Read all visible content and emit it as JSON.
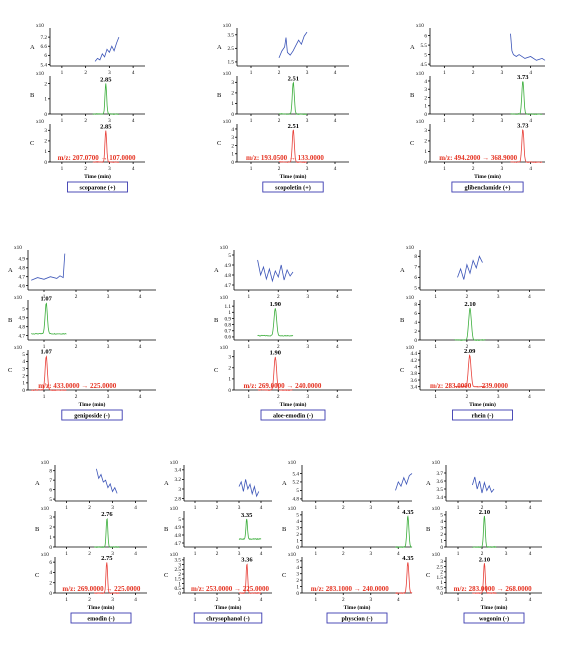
{
  "colors": {
    "A": "#3c55b8",
    "B": "#3cae3c",
    "C": "#e8413a",
    "mrm_text": "#e53322",
    "name_box": "#3a3ab0"
  },
  "chart_data": [
    {
      "type": "line",
      "compound": "scoparone (+)",
      "xlabel": "Time (min)",
      "xlim": [
        0.5,
        4.5
      ],
      "xticks": [
        1,
        2,
        3,
        4
      ],
      "mrm": "m/z: 207.0700 → 107.0000",
      "A": {
        "exp": "x10",
        "ticks": [
          5.4,
          6,
          6.6,
          7.2
        ],
        "ylim": [
          5.3,
          7.8
        ],
        "x": [
          2.4,
          2.5,
          2.6,
          2.7,
          2.8,
          2.9,
          3.0,
          3.1,
          3.2,
          3.3,
          3.4
        ],
        "y": [
          5.6,
          5.8,
          5.7,
          6.1,
          5.9,
          6.4,
          6.2,
          6.6,
          6.3,
          6.8,
          7.2
        ]
      },
      "B": {
        "exp": "x10",
        "ticks": [
          0,
          1,
          2
        ],
        "ylim": [
          0,
          2.5
        ],
        "peak_label": "2.85",
        "peak_rt": 2.85,
        "peak_h": 2.0,
        "x_start": 2.3,
        "x_end": 3.4,
        "width": 0.05
      },
      "C": {
        "exp": "x10",
        "ticks": [
          0,
          1,
          2,
          3
        ],
        "ylim": [
          0,
          3.6
        ],
        "peak_label": "2.85",
        "peak_rt": 2.85,
        "peak_h": 3.0,
        "x_start": 2.3,
        "x_end": 3.4,
        "width": 0.05
      }
    },
    {
      "type": "line",
      "compound": "scopoletin (+)",
      "xlabel": "Time (min)",
      "xlim": [
        0.5,
        4.5
      ],
      "xticks": [
        1,
        2,
        3,
        4
      ],
      "mrm": "m/z: 193.0500 → 133.0000",
      "A": {
        "exp": "x10",
        "ticks": [
          1.5,
          2.5,
          3.5
        ],
        "ylim": [
          1.2,
          4.0
        ],
        "x": [
          2.0,
          2.1,
          2.2,
          2.25,
          2.3,
          2.4,
          2.5,
          2.6,
          2.7,
          2.8,
          2.9,
          3.0
        ],
        "y": [
          1.8,
          2.3,
          2.6,
          3.3,
          2.2,
          2.0,
          2.3,
          2.7,
          3.1,
          2.8,
          3.4,
          3.7
        ]
      },
      "B": {
        "exp": "x10",
        "ticks": [
          0,
          1,
          2,
          3
        ],
        "ylim": [
          0,
          3.6
        ],
        "peak_label": "2.51",
        "peak_rt": 2.51,
        "peak_h": 3.0,
        "x_start": 2.0,
        "x_end": 3.0,
        "width": 0.05
      },
      "C": {
        "exp": "x10",
        "ticks": [
          0,
          1,
          2,
          3,
          4
        ],
        "ylim": [
          0,
          4.6
        ],
        "peak_label": "2.51",
        "peak_rt": 2.51,
        "peak_h": 3.9,
        "x_start": 2.0,
        "x_end": 3.0,
        "width": 0.05
      }
    },
    {
      "type": "line",
      "compound": "glibenclamide (+)",
      "xlabel": "Time (min)",
      "xlim": [
        0.5,
        4.5
      ],
      "xticks": [
        1,
        2,
        3,
        4
      ],
      "mrm": "m/z: 494.2000 → 368.9000",
      "A": {
        "exp": "x10",
        "ticks": [
          4.5,
          5,
          5.5,
          6
        ],
        "ylim": [
          4.4,
          6.4
        ],
        "x": [
          3.3,
          3.35,
          3.4,
          3.5,
          3.6,
          3.8,
          4.0,
          4.2,
          4.4,
          4.5
        ],
        "y": [
          6.1,
          5.2,
          5.0,
          4.9,
          5.0,
          4.8,
          4.9,
          4.7,
          4.8,
          4.7
        ]
      },
      "B": {
        "exp": "x10",
        "ticks": [
          0,
          1,
          2,
          3,
          4
        ],
        "ylim": [
          0,
          4.6
        ],
        "peak_label": "3.73",
        "peak_rt": 3.73,
        "peak_h": 4.0,
        "x_start": 3.3,
        "x_end": 4.4,
        "width": 0.05
      },
      "C": {
        "exp": "x10",
        "ticks": [
          0,
          1,
          2,
          3
        ],
        "ylim": [
          0,
          3.6
        ],
        "peak_label": "3.73",
        "peak_rt": 3.73,
        "peak_h": 3.1,
        "x_start": 3.3,
        "x_end": 4.4,
        "width": 0.05
      }
    },
    {
      "type": "line",
      "compound": "geniposide (-)",
      "xlabel": "Time (min)",
      "xlim": [
        0.5,
        4.5
      ],
      "xticks": [
        1,
        2,
        3,
        4
      ],
      "mrm": "m/z: 433.0000 → 225.0000",
      "A": {
        "exp": "x10",
        "ticks": [
          4.6,
          4.7,
          4.8,
          4.9
        ],
        "ylim": [
          4.55,
          5.0
        ],
        "x": [
          0.6,
          0.8,
          1.0,
          1.2,
          1.4,
          1.5,
          1.6,
          1.65
        ],
        "y": [
          4.66,
          4.69,
          4.67,
          4.7,
          4.68,
          4.71,
          4.69,
          4.96
        ]
      },
      "B": {
        "exp": "x10",
        "ticks": [
          4.7,
          4.8,
          4.9,
          5
        ],
        "ylim": [
          4.65,
          5.1
        ],
        "peak_label": "1.07",
        "peak_rt": 1.07,
        "peak_h": 0.35,
        "base": 4.72,
        "x_start": 0.6,
        "x_end": 1.7,
        "width": 0.05
      },
      "C": {
        "exp": "x10",
        "ticks": [
          0,
          1,
          2,
          3,
          4,
          5
        ],
        "ylim": [
          0,
          5.6
        ],
        "peak_label": "1.07",
        "peak_rt": 1.07,
        "peak_h": 4.8,
        "x_start": 0.6,
        "x_end": 1.7,
        "width": 0.05
      }
    },
    {
      "type": "line",
      "compound": "aloe-emodin (-)",
      "xlabel": "Time (min)",
      "xlim": [
        0.5,
        4.5
      ],
      "xticks": [
        1,
        2,
        3,
        4
      ],
      "mrm": "m/z: 269.0000 → 240.0000",
      "A": {
        "exp": "x10",
        "ticks": [
          4.7,
          4.8,
          4.9,
          5
        ],
        "ylim": [
          4.65,
          5.05
        ],
        "x": [
          1.3,
          1.4,
          1.5,
          1.6,
          1.7,
          1.8,
          1.9,
          2.0,
          2.1,
          2.2,
          2.3,
          2.4,
          2.5
        ],
        "y": [
          4.95,
          4.8,
          4.88,
          4.76,
          4.86,
          4.74,
          4.84,
          4.78,
          4.9,
          4.75,
          4.85,
          4.79,
          4.83
        ]
      },
      "B": {
        "exp": "x10",
        "ticks": [
          0.6,
          0.7,
          0.8,
          0.9,
          1,
          1.1
        ],
        "ylim": [
          0.55,
          1.2
        ],
        "peak_label": "1.90",
        "peak_rt": 1.9,
        "peak_h": 0.45,
        "base": 0.62,
        "x_start": 1.3,
        "x_end": 2.5,
        "width": 0.06
      },
      "C": {
        "exp": "x10",
        "ticks": [
          0,
          1,
          2,
          3
        ],
        "ylim": [
          0,
          3.6
        ],
        "peak_label": "1.90",
        "peak_rt": 1.9,
        "peak_h": 3.0,
        "x_start": 1.3,
        "x_end": 2.5,
        "width": 0.06
      }
    },
    {
      "type": "line",
      "compound": "rhein (-)",
      "xlabel": "Time (min)",
      "xlim": [
        0.5,
        4.5
      ],
      "xticks": [
        1,
        2,
        3,
        4
      ],
      "mrm": "m/z: 283.0000 → 239.0000",
      "A": {
        "exp": "x10",
        "ticks": [
          5,
          6,
          7,
          8
        ],
        "ylim": [
          4.8,
          8.6
        ],
        "x": [
          1.7,
          1.8,
          1.9,
          2.0,
          2.1,
          2.2,
          2.3,
          2.4,
          2.5
        ],
        "y": [
          6.0,
          6.8,
          5.8,
          7.2,
          6.4,
          7.6,
          6.9,
          8.0,
          7.4
        ]
      },
      "B": {
        "exp": "x10",
        "ticks": [
          0,
          2,
          4,
          6,
          8
        ],
        "ylim": [
          0,
          9
        ],
        "peak_label": "2.10",
        "peak_rt": 2.1,
        "peak_h": 7.2,
        "x_start": 1.6,
        "x_end": 2.6,
        "width": 0.06
      },
      "C": {
        "exp": "x10",
        "ticks": [
          3.4,
          3.6,
          3.8,
          4,
          4.2,
          4.4
        ],
        "ylim": [
          3.3,
          4.5
        ],
        "peak_label": "2.09",
        "peak_rt": 2.09,
        "peak_h": 0.95,
        "base": 3.4,
        "x_start": 1.6,
        "x_end": 2.6,
        "width": 0.06
      }
    },
    {
      "type": "line",
      "compound": "emodin (-)",
      "xlabel": "Time (min)",
      "xlim": [
        0.5,
        4.5
      ],
      "xticks": [
        1,
        2,
        3,
        4
      ],
      "mrm": "m/z: 269.0000 → 225.0000",
      "A": {
        "exp": "x10",
        "ticks": [
          5,
          6,
          7,
          8
        ],
        "ylim": [
          4.8,
          8.6
        ],
        "x": [
          2.3,
          2.4,
          2.5,
          2.6,
          2.7,
          2.8,
          2.9,
          3.0,
          3.1,
          3.2
        ],
        "y": [
          8.2,
          7.2,
          7.6,
          6.8,
          7.0,
          6.2,
          6.6,
          5.8,
          6.2,
          5.6
        ]
      },
      "B": {
        "exp": "x10",
        "ticks": [
          0,
          1,
          2,
          3
        ],
        "ylim": [
          0,
          3.6
        ],
        "peak_label": "2.76",
        "peak_rt": 2.76,
        "peak_h": 2.9,
        "x_start": 2.2,
        "x_end": 3.3,
        "width": 0.05
      },
      "C": {
        "exp": "x10",
        "ticks": [
          0,
          2,
          4,
          6
        ],
        "ylim": [
          0,
          7
        ],
        "peak_label": "2.75",
        "peak_rt": 2.75,
        "peak_h": 6.0,
        "x_start": 2.2,
        "x_end": 3.3,
        "width": 0.05
      }
    },
    {
      "type": "line",
      "compound": "chrysophanol (-)",
      "xlabel": "Time (min)",
      "xlim": [
        0.5,
        4.5
      ],
      "xticks": [
        1,
        2,
        3,
        4
      ],
      "mrm": "m/z: 253.0000 → 225.0000",
      "A": {
        "exp": "x10",
        "ticks": [
          2.8,
          3,
          3.2,
          3.4
        ],
        "ylim": [
          2.75,
          3.5
        ],
        "x": [
          3.0,
          3.1,
          3.2,
          3.3,
          3.4,
          3.5,
          3.6,
          3.7,
          3.8,
          3.9
        ],
        "y": [
          3.05,
          3.15,
          2.95,
          3.2,
          3.0,
          3.1,
          2.9,
          3.05,
          2.85,
          2.95
        ]
      },
      "B": {
        "exp": "x10",
        "ticks": [
          4.7,
          4.8,
          4.9,
          5
        ],
        "ylim": [
          4.65,
          5.1
        ],
        "peak_label": "3.35",
        "peak_rt": 3.35,
        "peak_h": 0.25,
        "base": 4.75,
        "x_start": 3.0,
        "x_end": 4.0,
        "width": 0.05
      },
      "C": {
        "exp": "x10",
        "ticks": [
          0,
          0.5,
          1,
          1.5,
          2,
          2.5,
          3,
          3.5
        ],
        "ylim": [
          0,
          3.8
        ],
        "peak_label": "3.36",
        "peak_rt": 3.36,
        "peak_h": 3.1,
        "x_start": 3.0,
        "x_end": 4.0,
        "width": 0.05
      }
    },
    {
      "type": "line",
      "compound": "physcion (-)",
      "xlabel": "Time (min)",
      "xlim": [
        0.5,
        4.5
      ],
      "xticks": [
        1,
        2,
        3,
        4
      ],
      "mrm": "m/z: 283.1000 → 240.0000",
      "A": {
        "exp": "x10",
        "ticks": [
          4.8,
          5,
          5.2,
          5.4
        ],
        "ylim": [
          4.75,
          5.6
        ],
        "x": [
          3.9,
          4.0,
          4.1,
          4.2,
          4.3,
          4.4,
          4.5
        ],
        "y": [
          5.0,
          5.2,
          5.1,
          5.3,
          5.15,
          5.35,
          5.4
        ]
      },
      "B": {
        "exp": "x10",
        "ticks": [
          0,
          1,
          2,
          3,
          4,
          5
        ],
        "ylim": [
          0,
          5.6
        ],
        "peak_label": "4.35",
        "peak_rt": 4.35,
        "peak_h": 4.8,
        "x_start": 3.9,
        "x_end": 4.5,
        "width": 0.05
      },
      "C": {
        "exp": "x10",
        "ticks": [
          0,
          1,
          2,
          3,
          4,
          5
        ],
        "ylim": [
          0,
          5.6
        ],
        "peak_label": "4.35",
        "peak_rt": 4.35,
        "peak_h": 4.8,
        "x_start": 3.9,
        "x_end": 4.5,
        "width": 0.05
      }
    },
    {
      "type": "line",
      "compound": "wogonin (-)",
      "xlabel": "Time (min)",
      "xlim": [
        0.5,
        4.5
      ],
      "xticks": [
        1,
        2,
        3,
        4
      ],
      "mrm": "m/z: 283.0000 → 268.0000",
      "A": {
        "exp": "x10",
        "ticks": [
          3.4,
          3.5,
          3.6,
          3.7
        ],
        "ylim": [
          3.35,
          3.8
        ],
        "x": [
          1.6,
          1.7,
          1.8,
          1.9,
          2.0,
          2.1,
          2.2,
          2.3,
          2.4,
          2.5
        ],
        "y": [
          3.55,
          3.65,
          3.5,
          3.6,
          3.45,
          3.58,
          3.48,
          3.54,
          3.46,
          3.5
        ]
      },
      "B": {
        "exp": "x10",
        "ticks": [
          0,
          1,
          2,
          3,
          4,
          5
        ],
        "ylim": [
          0,
          5.6
        ],
        "peak_label": "2.10",
        "peak_rt": 2.1,
        "peak_h": 4.8,
        "x_start": 1.6,
        "x_end": 2.6,
        "width": 0.05
      },
      "C": {
        "exp": "x10",
        "ticks": [
          0,
          0.5,
          1,
          1.5,
          2,
          2.5,
          3
        ],
        "ylim": [
          0,
          3.4
        ],
        "peak_label": "2.10",
        "peak_rt": 2.1,
        "peak_h": 2.8,
        "x_start": 1.6,
        "x_end": 2.6,
        "width": 0.05
      }
    }
  ]
}
